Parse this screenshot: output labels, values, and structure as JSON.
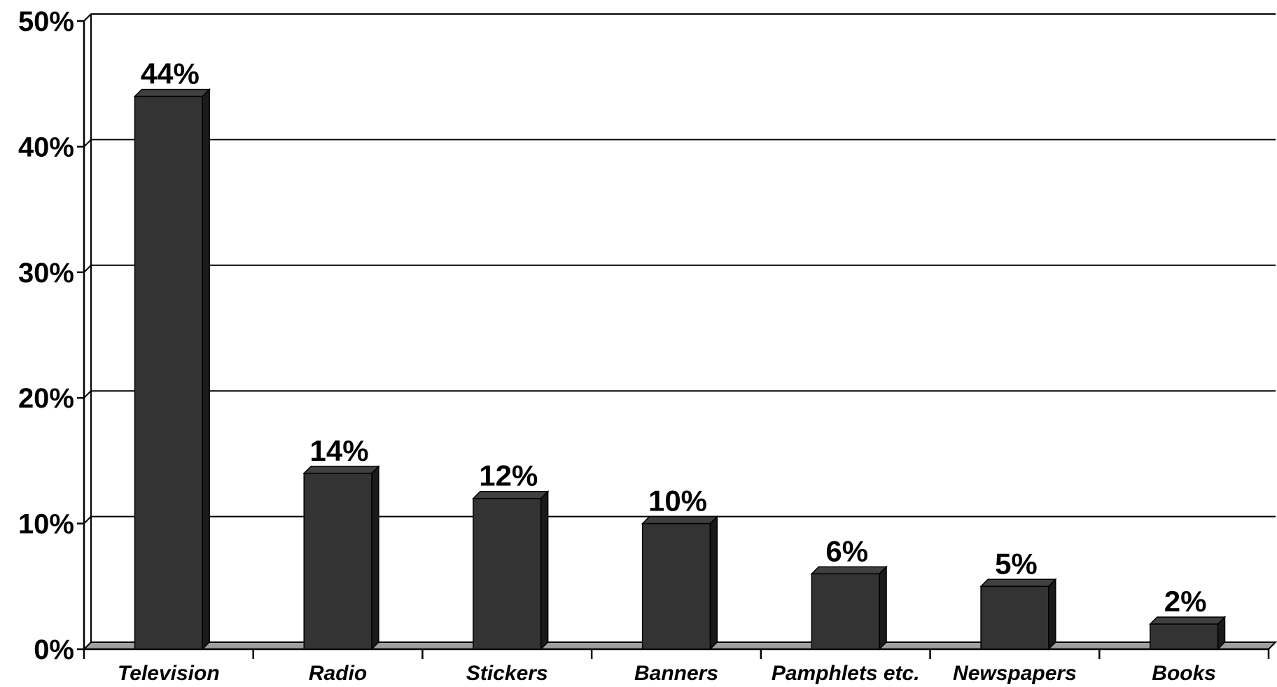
{
  "chart_data": {
    "type": "bar",
    "title": "",
    "xlabel": "",
    "ylabel": "",
    "categories": [
      "Television",
      "Radio",
      "Stickers",
      "Banners",
      "Pamphlets etc.",
      "Newspapers",
      "Books"
    ],
    "values": [
      44,
      14,
      12,
      10,
      6,
      5,
      2
    ],
    "data_labels": [
      "44%",
      "14%",
      "12%",
      "10%",
      "6%",
      "5%",
      "2%"
    ],
    "yticks": [
      0,
      10,
      20,
      30,
      40,
      50
    ],
    "ytick_labels": [
      "0%",
      "10%",
      "20%",
      "30%",
      "40%",
      "50%"
    ],
    "ylim": [
      0,
      50
    ],
    "grid": true,
    "legend": "none",
    "style": "3d-bar",
    "colors": {
      "bar_front": "#333333",
      "bar_side": "#1a1a1a",
      "bar_top": "#404040",
      "floor": "#a0a0a0",
      "gridline": "#000000"
    }
  }
}
